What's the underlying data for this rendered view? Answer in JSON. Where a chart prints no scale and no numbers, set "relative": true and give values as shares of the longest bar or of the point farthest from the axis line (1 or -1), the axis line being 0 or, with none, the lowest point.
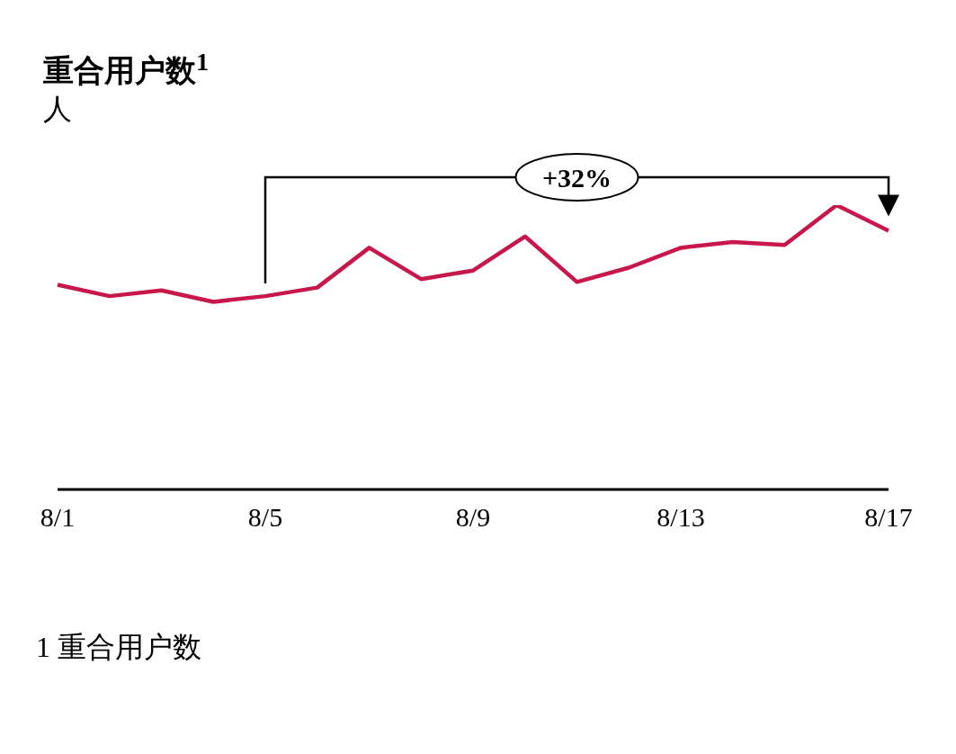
{
  "chart_data": {
    "type": "line",
    "title": "重合用户数$^{1}$",
    "ylabel": "人",
    "relative": true,
    "categories": [
      "8/1",
      null,
      null,
      null,
      "8/5",
      null,
      null,
      null,
      "8/9",
      null,
      null,
      null,
      "8/13",
      null,
      null,
      null,
      "8/17"
    ],
    "series": [
      {
        "color": "#c8174b",
        "values": [
          0.72,
          0.68,
          0.7,
          0.66,
          0.68,
          0.71,
          0.85,
          0.74,
          0.77,
          0.89,
          0.73,
          0.78,
          0.85,
          0.87,
          0.86,
          1,
          0.91
        ]
      }
    ],
    "annotations": [
      "+32%",
      "1 重合用户数"
    ],
    "grid": false,
    "legend": false,
    "marker": "none",
    "line_style": "solid"
  }
}
